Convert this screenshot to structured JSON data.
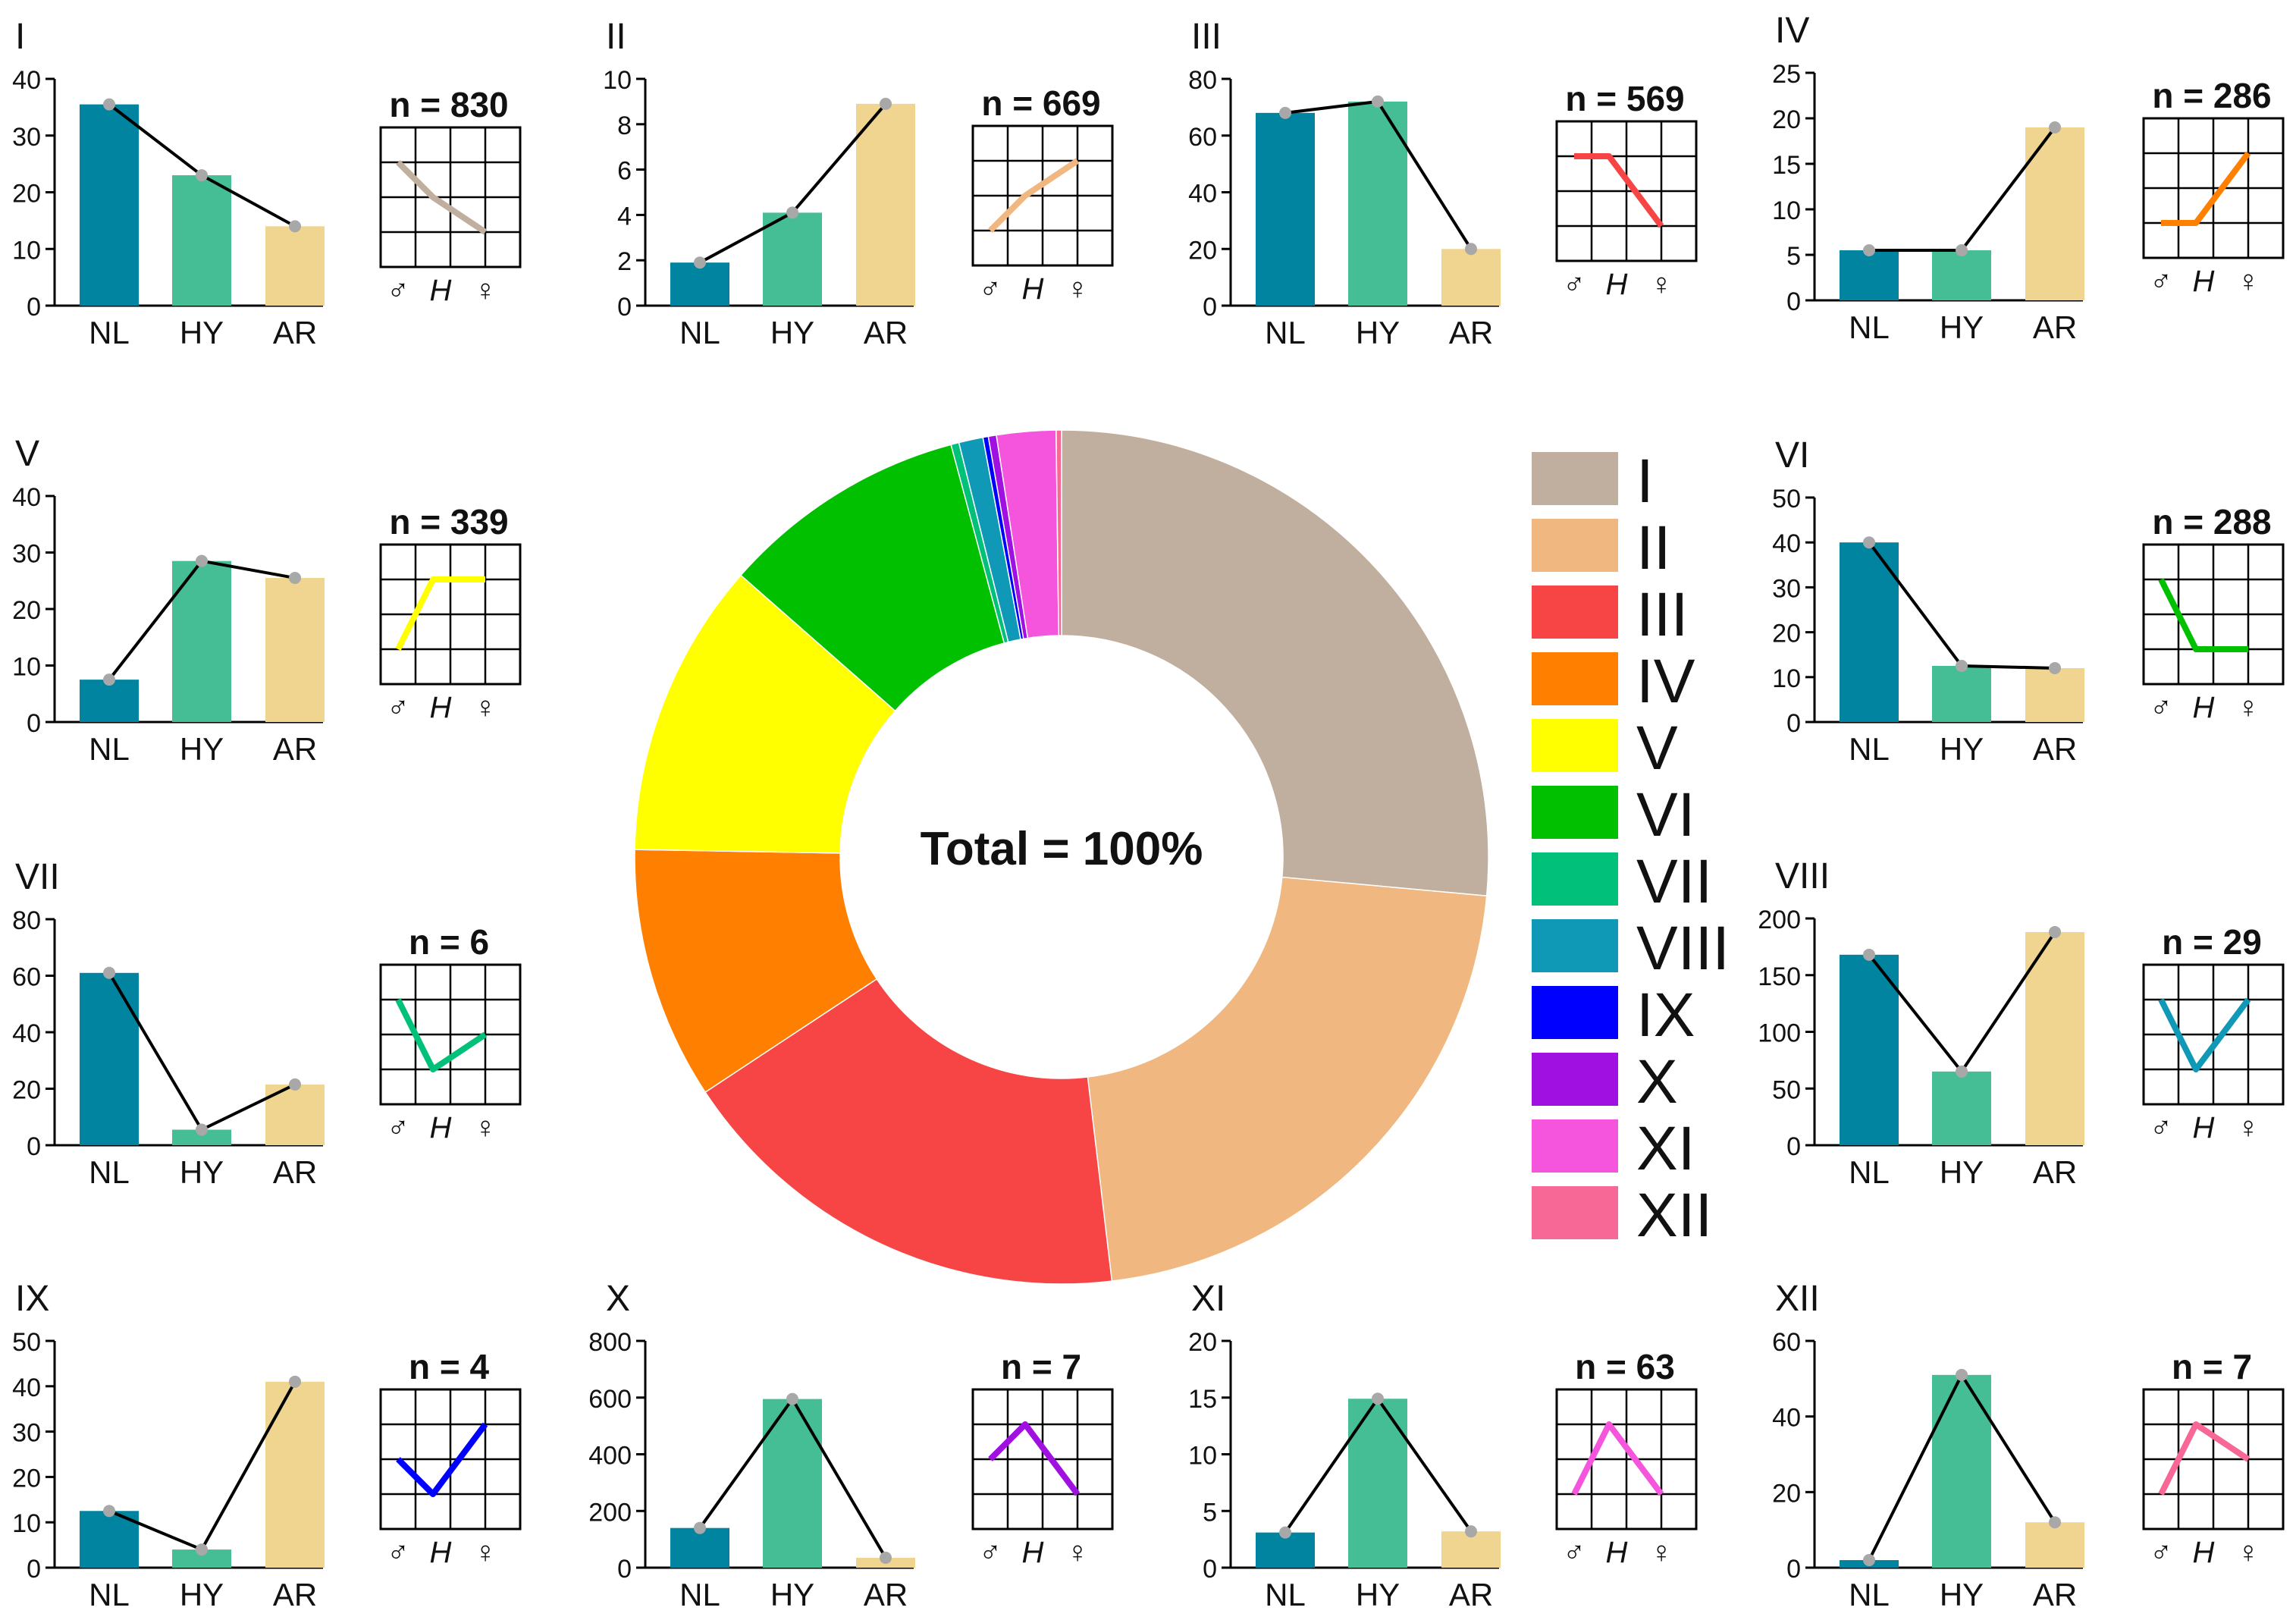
{
  "donut": {
    "center_label": "Total = 100%"
  },
  "colors": {
    "NL": "#00849F",
    "HY": "#45BE96",
    "AR": "#EFD590",
    "dot": "#A8A8A8",
    "line": "#000000"
  },
  "chart_data": [
    {
      "type": "pie",
      "title": "Total = 100%",
      "categories": [
        "I",
        "II",
        "III",
        "IV",
        "V",
        "VI",
        "VII",
        "VIII",
        "IX",
        "X",
        "XI",
        "XII"
      ],
      "values": [
        26.0,
        21.3,
        17.3,
        9.4,
        11.0,
        9.2,
        0.3,
        0.9,
        0.2,
        0.3,
        2.2,
        0.2
      ],
      "colors": [
        "#C0AE9E",
        "#F0B880",
        "#F74444",
        "#FF7F00",
        "#FFFF00",
        "#00C000",
        "#00C07A",
        "#1099B6",
        "#0000FF",
        "#A010E0",
        "#F555DC",
        "#F86896"
      ]
    },
    {
      "type": "bar",
      "title": "I",
      "n": "n = 830",
      "categories": [
        "NL",
        "HY",
        "AR"
      ],
      "values": [
        35.5,
        23,
        14
      ],
      "ylim": [
        0,
        40
      ],
      "yticks": [
        0,
        10,
        20,
        30,
        40
      ],
      "pattern": [
        1.0,
        2.0,
        3.0
      ],
      "pattern_color": "#C0AE9E"
    },
    {
      "type": "bar",
      "title": "II",
      "n": "n = 669",
      "categories": [
        "NL",
        "HY",
        "AR"
      ],
      "values": [
        1.9,
        4.1,
        8.9
      ],
      "ylim": [
        0,
        10
      ],
      "yticks": [
        0,
        2,
        4,
        6,
        8,
        10
      ],
      "pattern": [
        3.0,
        2.0,
        1.0
      ],
      "pattern_color": "#F0B880"
    },
    {
      "type": "bar",
      "title": "III",
      "n": "n = 569",
      "categories": [
        "NL",
        "HY",
        "AR"
      ],
      "values": [
        68,
        72,
        20
      ],
      "ylim": [
        0,
        80
      ],
      "yticks": [
        0,
        20,
        40,
        60,
        80
      ],
      "pattern": [
        1.0,
        1.0,
        3.0
      ],
      "pattern_color": "#F74444"
    },
    {
      "type": "bar",
      "title": "IV",
      "n": "n = 286",
      "categories": [
        "NL",
        "HY",
        "AR"
      ],
      "values": [
        5.5,
        5.5,
        19
      ],
      "ylim": [
        0,
        25
      ],
      "yticks": [
        0,
        5,
        10,
        15,
        20,
        25
      ],
      "pattern": [
        3.0,
        3.0,
        1.0
      ],
      "pattern_color": "#FF7F00"
    },
    {
      "type": "bar",
      "title": "V",
      "n": "n = 339",
      "categories": [
        "NL",
        "HY",
        "AR"
      ],
      "values": [
        7.5,
        28.5,
        25.5
      ],
      "ylim": [
        0,
        40
      ],
      "yticks": [
        0,
        10,
        20,
        30,
        40
      ],
      "pattern": [
        3.0,
        1.0,
        1.0
      ],
      "pattern_color": "#FFFF00"
    },
    {
      "type": "bar",
      "title": "VI",
      "n": "n = 288",
      "categories": [
        "NL",
        "HY",
        "AR"
      ],
      "values": [
        40,
        12.5,
        12
      ],
      "ylim": [
        0,
        50
      ],
      "yticks": [
        0,
        10,
        20,
        30,
        40,
        50
      ],
      "pattern": [
        1.0,
        3.0,
        3.0
      ],
      "pattern_color": "#00C000"
    },
    {
      "type": "bar",
      "title": "VII",
      "n": "n = 6",
      "categories": [
        "NL",
        "HY",
        "AR"
      ],
      "values": [
        61,
        5.5,
        21.5
      ],
      "ylim": [
        0,
        80
      ],
      "yticks": [
        0,
        20,
        40,
        60,
        80
      ],
      "pattern": [
        1.0,
        3.0,
        2.0
      ],
      "pattern_color": "#00C07A"
    },
    {
      "type": "bar",
      "title": "VIII",
      "n": "n = 29",
      "categories": [
        "NL",
        "HY",
        "AR"
      ],
      "values": [
        168,
        65,
        188
      ],
      "ylim": [
        0,
        200
      ],
      "yticks": [
        0,
        50,
        100,
        150,
        200
      ],
      "pattern": [
        1.0,
        3.0,
        1.0
      ],
      "pattern_color": "#1099B6"
    },
    {
      "type": "bar",
      "title": "IX",
      "n": "n = 4",
      "categories": [
        "NL",
        "HY",
        "AR"
      ],
      "values": [
        12.5,
        4,
        41
      ],
      "ylim": [
        0,
        50
      ],
      "yticks": [
        0,
        10,
        20,
        30,
        40,
        50
      ],
      "pattern": [
        2.0,
        3.0,
        1.0
      ],
      "pattern_color": "#0000FF"
    },
    {
      "type": "bar",
      "title": "X",
      "n": "n = 7",
      "categories": [
        "NL",
        "HY",
        "AR"
      ],
      "values": [
        140,
        595,
        35
      ],
      "ylim": [
        0,
        800
      ],
      "yticks": [
        0,
        200,
        400,
        600,
        800
      ],
      "pattern": [
        2.0,
        1.0,
        3.0
      ],
      "pattern_color": "#A010E0"
    },
    {
      "type": "bar",
      "title": "XI",
      "n": "n = 63",
      "categories": [
        "NL",
        "HY",
        "AR"
      ],
      "values": [
        3.1,
        14.9,
        3.2
      ],
      "ylim": [
        0,
        20
      ],
      "yticks": [
        0,
        5,
        10,
        15,
        20
      ],
      "pattern": [
        3.0,
        1.0,
        3.0
      ],
      "pattern_color": "#F555DC"
    },
    {
      "type": "bar",
      "title": "XII",
      "n": "n = 7",
      "categories": [
        "NL",
        "HY",
        "AR"
      ],
      "values": [
        2,
        51,
        12
      ],
      "ylim": [
        0,
        60
      ],
      "yticks": [
        0,
        20,
        40,
        60
      ],
      "pattern": [
        3.0,
        1.0,
        2.0
      ],
      "pattern_color": "#F86896"
    }
  ],
  "pattern_axis": {
    "labels": [
      "♂",
      "H",
      "♀"
    ]
  }
}
